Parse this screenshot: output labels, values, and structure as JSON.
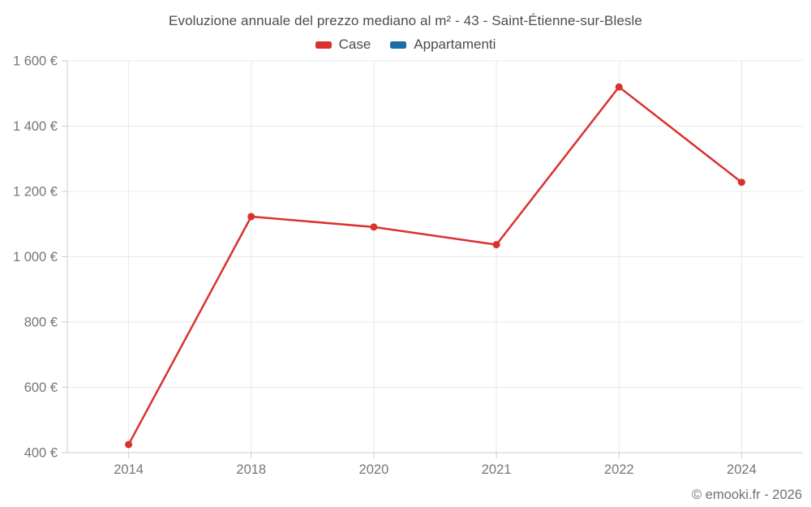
{
  "title": "Evoluzione annuale del prezzo mediano al m² - 43 - Saint-Étienne-sur-Blesle",
  "legend": [
    {
      "label": "Case",
      "color": "#d9322e"
    },
    {
      "label": "Appartamenti",
      "color": "#1a6da6"
    }
  ],
  "footer": "© emooki.fr - 2026",
  "colors": {
    "grid": "#e9e9e9",
    "axis": "#cccccc",
    "tick": "#cccccc",
    "axis_text": "#767676",
    "title_text": "#4c4c4c",
    "background": "#ffffff"
  },
  "chart_data": {
    "type": "line",
    "x": [
      "2014",
      "2018",
      "2020",
      "2021",
      "2022",
      "2024"
    ],
    "series": [
      {
        "name": "Case",
        "color": "#d9322e",
        "values": [
          425,
          1123,
          1091,
          1037,
          1520,
          1228
        ]
      },
      {
        "name": "Appartamenti",
        "color": "#1a6da6",
        "values": []
      }
    ],
    "title": "Evoluzione annuale del prezzo mediano al m² - 43 - Saint-Étienne-sur-Blesle",
    "xlabel": "",
    "ylabel": "",
    "ylim": [
      400,
      1600
    ],
    "yticks": [
      400,
      600,
      800,
      1000,
      1200,
      1400,
      1600
    ],
    "ytick_labels": [
      "400 €",
      "600 €",
      "800 €",
      "1 000 €",
      "1 200 €",
      "1 400 €",
      "1 600 €"
    ],
    "grid": true,
    "legend_position": "top",
    "marker": "circle",
    "marker_radius": 4.5,
    "line_width": 2.5
  }
}
